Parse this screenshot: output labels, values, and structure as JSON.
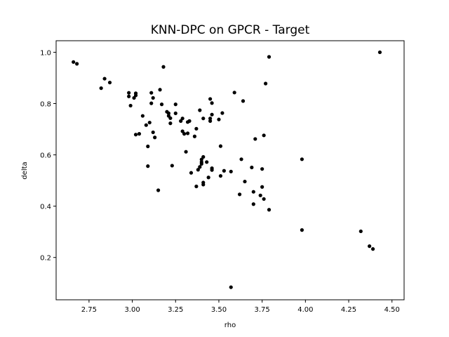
{
  "chart_data": {
    "type": "scatter",
    "title": "KNN-DPC on GPCR - Target",
    "xlabel": "rho",
    "ylabel": "delta",
    "xlim": [
      2.56,
      4.57
    ],
    "ylim": [
      0.035,
      1.045
    ],
    "xticks": [
      2.75,
      3.0,
      3.25,
      3.5,
      3.75,
      4.0,
      4.25,
      4.5
    ],
    "xtick_labels": [
      "2.75",
      "3.00",
      "3.25",
      "3.50",
      "3.75",
      "4.00",
      "4.25",
      "4.50"
    ],
    "yticks": [
      0.2,
      0.4,
      0.6,
      0.8,
      1.0
    ],
    "ytick_labels": [
      "0.2",
      "0.4",
      "0.6",
      "0.8",
      "1.0"
    ],
    "grid": false,
    "marker_color": "#000000",
    "points": [
      [
        2.66,
        0.962
      ],
      [
        2.68,
        0.955
      ],
      [
        2.82,
        0.86
      ],
      [
        2.84,
        0.897
      ],
      [
        2.87,
        0.882
      ],
      [
        2.98,
        0.828
      ],
      [
        2.98,
        0.842
      ],
      [
        2.99,
        0.792
      ],
      [
        3.01,
        0.822
      ],
      [
        3.02,
        0.832
      ],
      [
        3.02,
        0.84
      ],
      [
        3.02,
        0.679
      ],
      [
        3.04,
        0.682
      ],
      [
        3.06,
        0.752
      ],
      [
        3.08,
        0.716
      ],
      [
        3.09,
        0.633
      ],
      [
        3.09,
        0.556
      ],
      [
        3.1,
        0.726
      ],
      [
        3.11,
        0.842
      ],
      [
        3.11,
        0.801
      ],
      [
        3.12,
        0.822
      ],
      [
        3.12,
        0.688
      ],
      [
        3.13,
        0.668
      ],
      [
        3.15,
        0.462
      ],
      [
        3.16,
        0.854
      ],
      [
        3.17,
        0.797
      ],
      [
        3.18,
        0.943
      ],
      [
        3.2,
        0.768
      ],
      [
        3.21,
        0.762
      ],
      [
        3.21,
        0.752
      ],
      [
        3.22,
        0.743
      ],
      [
        3.22,
        0.723
      ],
      [
        3.23,
        0.558
      ],
      [
        3.25,
        0.797
      ],
      [
        3.25,
        0.762
      ],
      [
        3.28,
        0.732
      ],
      [
        3.29,
        0.742
      ],
      [
        3.29,
        0.692
      ],
      [
        3.3,
        0.682
      ],
      [
        3.31,
        0.612
      ],
      [
        3.32,
        0.728
      ],
      [
        3.32,
        0.684
      ],
      [
        3.33,
        0.732
      ],
      [
        3.34,
        0.53
      ],
      [
        3.36,
        0.672
      ],
      [
        3.37,
        0.702
      ],
      [
        3.37,
        0.477
      ],
      [
        3.38,
        0.542
      ],
      [
        3.39,
        0.553
      ],
      [
        3.39,
        0.774
      ],
      [
        3.4,
        0.582
      ],
      [
        3.4,
        0.572
      ],
      [
        3.4,
        0.565
      ],
      [
        3.41,
        0.742
      ],
      [
        3.41,
        0.592
      ],
      [
        3.41,
        0.492
      ],
      [
        3.41,
        0.484
      ],
      [
        3.43,
        0.572
      ],
      [
        3.44,
        0.512
      ],
      [
        3.45,
        0.818
      ],
      [
        3.45,
        0.742
      ],
      [
        3.45,
        0.732
      ],
      [
        3.46,
        0.802
      ],
      [
        3.46,
        0.757
      ],
      [
        3.46,
        0.548
      ],
      [
        3.46,
        0.541
      ],
      [
        3.5,
        0.738
      ],
      [
        3.51,
        0.634
      ],
      [
        3.51,
        0.518
      ],
      [
        3.52,
        0.763
      ],
      [
        3.53,
        0.538
      ],
      [
        3.57,
        0.535
      ],
      [
        3.57,
        0.084
      ],
      [
        3.59,
        0.843
      ],
      [
        3.62,
        0.446
      ],
      [
        3.63,
        0.583
      ],
      [
        3.64,
        0.81
      ],
      [
        3.65,
        0.496
      ],
      [
        3.69,
        0.551
      ],
      [
        3.7,
        0.456
      ],
      [
        3.7,
        0.408
      ],
      [
        3.71,
        0.662
      ],
      [
        3.74,
        0.442
      ],
      [
        3.75,
        0.475
      ],
      [
        3.75,
        0.545
      ],
      [
        3.76,
        0.676
      ],
      [
        3.76,
        0.428
      ],
      [
        3.77,
        0.878
      ],
      [
        3.79,
        0.386
      ],
      [
        3.79,
        0.982
      ],
      [
        3.98,
        0.583
      ],
      [
        3.98,
        0.307
      ],
      [
        4.32,
        0.302
      ],
      [
        4.37,
        0.244
      ],
      [
        4.39,
        0.233
      ],
      [
        4.43,
        1.0
      ]
    ]
  }
}
